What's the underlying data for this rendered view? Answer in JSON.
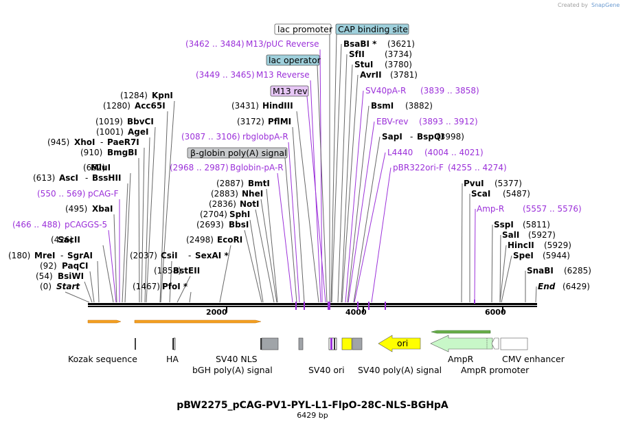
{
  "credit": {
    "prefix": "Created by",
    "brand": "SnapGene"
  },
  "title": "pBW2275_pCAG-PV1-PYL-L1-FlpO-28C-NLS-BGHpA",
  "subtitle": "6429 bp",
  "total_bp": 6429,
  "ruler": {
    "ticks": [
      "2000",
      "4000",
      "6000"
    ]
  },
  "colors": {
    "primer": "#9b30d9",
    "boxed_primer_fill": "#e6c6f5",
    "lac_fill": "#9fd0dc",
    "grey_feature": "#a0a4a8",
    "yellow_feature": "#ffff00",
    "ampr_fill": "#c8f7c8"
  },
  "left_sites": [
    {
      "name": "Start",
      "pos": "(0)",
      "italic": true
    },
    {
      "name": "BsiWI",
      "pos": "(54)"
    },
    {
      "name": "PaqCI",
      "pos": "(92)"
    },
    {
      "name": "MreI",
      "pos": "(180)",
      "extra": "SgrAI"
    },
    {
      "name": "SacII",
      "pos": "(426)"
    },
    {
      "name": "pCAGGS-5",
      "pos": "(466 .. 488)",
      "primer": true
    },
    {
      "name": "XbaI",
      "pos": "(495)"
    },
    {
      "name": "pCAG-F",
      "pos": "(550 .. 569)",
      "primer": true
    },
    {
      "name": "AscI",
      "pos": "(613)",
      "extra": "BssHII"
    },
    {
      "name": "MluI",
      "pos": "(662)"
    },
    {
      "name": "BmgBI",
      "pos": "(910)"
    },
    {
      "name": "XhoI",
      "pos": "(945)",
      "extra": "PaeR7I"
    },
    {
      "name": "AgeI",
      "pos": "(1001)"
    },
    {
      "name": "BbvCI",
      "pos": "(1019)"
    },
    {
      "name": "Acc65I",
      "pos": "(1280)"
    },
    {
      "name": "KpnI",
      "pos": "(1284)"
    }
  ],
  "mid_sites": [
    {
      "name": "PfoI *",
      "pos": "(1467)"
    },
    {
      "name": "BstEII",
      "pos": "(1858)"
    },
    {
      "name": "CsiI",
      "pos": "(2037)",
      "extra": "SexAI *"
    },
    {
      "name": "EcoRI",
      "pos": "(2498)"
    },
    {
      "name": "BbsI",
      "pos": "(2693)"
    },
    {
      "name": "SphI",
      "pos": "(2704)"
    },
    {
      "name": "NotI",
      "pos": "(2836)"
    },
    {
      "name": "NheI",
      "pos": "(2883)"
    },
    {
      "name": "BmtI",
      "pos": "(2887)"
    },
    {
      "name": "Bglobin-pA-R",
      "pos": "(2968 .. 2987)",
      "primer": true
    },
    {
      "name": "rbglobpA-R",
      "pos": "(3087 .. 3106)",
      "primer": true
    },
    {
      "name": "PflMI",
      "pos": "(3172)"
    },
    {
      "name": "HindIII",
      "pos": "(3431)"
    },
    {
      "name": "M13 Reverse",
      "pos": "(3449 .. 3465)",
      "primer": true
    },
    {
      "name": "M13/pUC Reverse",
      "pos": "(3462 .. 3484)",
      "primer": true
    }
  ],
  "boxed_labels": [
    {
      "name": "β-globin poly(A) signal",
      "style": "grey"
    },
    {
      "name": "M13 rev",
      "style": "primer"
    },
    {
      "name": "lac operator",
      "style": "lac"
    },
    {
      "name": "lac promoter",
      "style": "white"
    },
    {
      "name": "CAP binding site",
      "style": "lac"
    }
  ],
  "right_sites": [
    {
      "name": "BsaBI *",
      "pos": "(3621)"
    },
    {
      "name": "SfII",
      "pos": "(3734)"
    },
    {
      "name": "StuI",
      "pos": "(3780)"
    },
    {
      "name": "AvrII",
      "pos": "(3781)"
    },
    {
      "name": "SV40pA-R",
      "pos": "(3839 .. 3858)",
      "primer": true
    },
    {
      "name": "BsmI",
      "pos": "(3882)"
    },
    {
      "name": "EBV-rev",
      "pos": "(3893 .. 3912)",
      "primer": true
    },
    {
      "name": "SapI",
      "pos": "(3998)",
      "extra": "BspQI"
    },
    {
      "name": "L4440",
      "pos": "(4004 .. 4021)",
      "primer": true
    },
    {
      "name": "pBR322ori-F",
      "pos": "(4255 .. 4274)",
      "primer": true
    }
  ],
  "far_sites": [
    {
      "name": "PvuI",
      "pos": "(5377)"
    },
    {
      "name": "ScaI",
      "pos": "(5487)"
    },
    {
      "name": "Amp-R",
      "pos": "(5557 .. 5576)",
      "primer": true
    },
    {
      "name": "SspI",
      "pos": "(5811)"
    },
    {
      "name": "SalI",
      "pos": "(5927)"
    },
    {
      "name": "HincII",
      "pos": "(5929)"
    },
    {
      "name": "SpeI",
      "pos": "(5944)"
    },
    {
      "name": "SnaBI",
      "pos": "(6285)"
    },
    {
      "name": "End",
      "pos": "(6429)",
      "italic": true
    }
  ],
  "features_bottom": [
    {
      "name": "Kozak sequence"
    },
    {
      "name": "HA"
    },
    {
      "name": "SV40 NLS"
    },
    {
      "name": "bGH poly(A) signal"
    },
    {
      "name": "SV40 ori"
    },
    {
      "name": "SV40 poly(A) signal"
    },
    {
      "name": "ori"
    },
    {
      "name": "AmpR"
    },
    {
      "name": "AmpR promoter"
    },
    {
      "name": "CMV enhancer"
    }
  ]
}
